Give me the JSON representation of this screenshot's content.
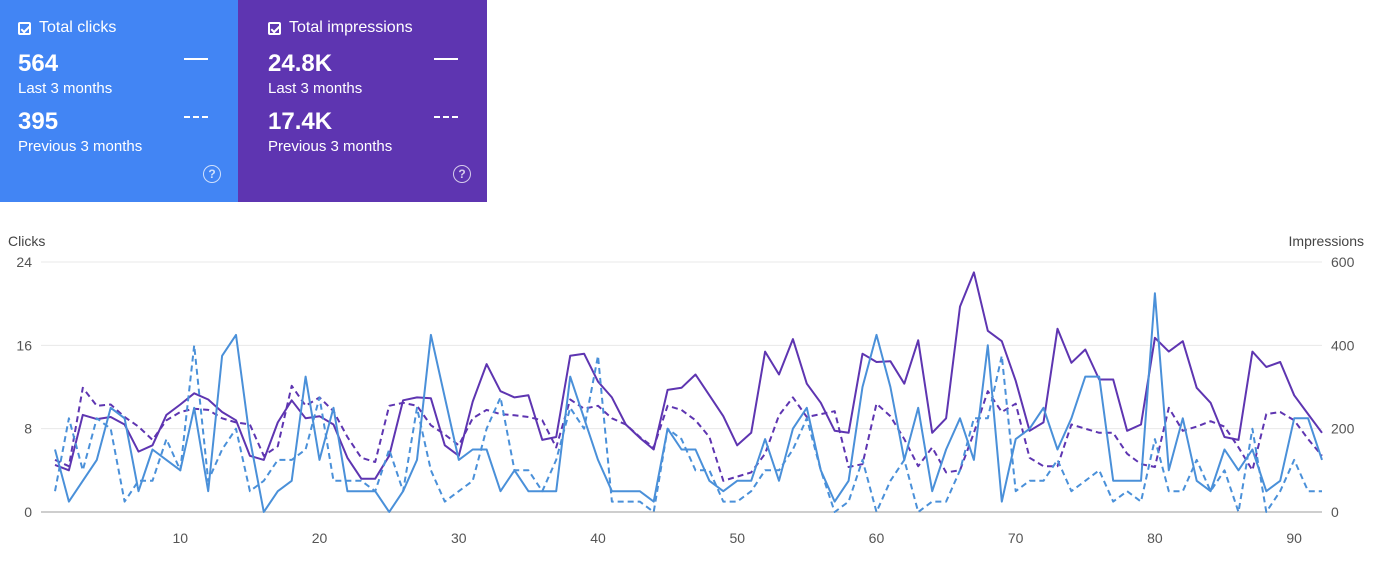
{
  "cards": {
    "clicks": {
      "title": "Total clicks",
      "current_value": "564",
      "current_label": "Last 3 months",
      "previous_value": "395",
      "previous_label": "Previous 3 months",
      "color": "#4285f4",
      "help_glyph": "?"
    },
    "impressions": {
      "title": "Total impressions",
      "current_value": "24.8K",
      "current_label": "Last 3 months",
      "previous_value": "17.4K",
      "previous_label": "Previous 3 months",
      "color": "#5e35b1",
      "help_glyph": "?"
    }
  },
  "chart_data": {
    "type": "line",
    "left_axis_label": "Clicks",
    "right_axis_label": "Impressions",
    "y_left_ticks": [
      0,
      8,
      16,
      24
    ],
    "y_right_ticks": [
      0,
      200,
      400,
      600
    ],
    "ylim_left": [
      0,
      24
    ],
    "ylim_right": [
      0,
      600
    ],
    "x_ticks": [
      10,
      20,
      30,
      40,
      50,
      60,
      70,
      80,
      90
    ],
    "xlim": [
      1,
      92
    ],
    "grid": true,
    "series": [
      {
        "axis": "right",
        "style": "solid",
        "color": "#5e35b1",
        "values": [
          113,
          100,
          233,
          223,
          228,
          210,
          145,
          160,
          233,
          258,
          285,
          270,
          240,
          220,
          135,
          125,
          215,
          268,
          225,
          230,
          210,
          130,
          80,
          80,
          135,
          268,
          275,
          273,
          160,
          135,
          265,
          355,
          290,
          275,
          280,
          173,
          180,
          375,
          380,
          313,
          275,
          210,
          178,
          150,
          293,
          298,
          330,
          280,
          230,
          160,
          190,
          385,
          330,
          415,
          308,
          262,
          195,
          190,
          380,
          360,
          362,
          308,
          412,
          190,
          225,
          493,
          575,
          435,
          410,
          315,
          195,
          215,
          440,
          358,
          390,
          318,
          318,
          195,
          210,
          418,
          385,
          410,
          298,
          262,
          180,
          173,
          385,
          348,
          360,
          280,
          235,
          190
        ]
      },
      {
        "axis": "right",
        "style": "dashed",
        "color": "#5e35b1",
        "values": [
          125,
          110,
          298,
          255,
          258,
          228,
          205,
          173,
          220,
          240,
          248,
          245,
          225,
          215,
          210,
          135,
          158,
          303,
          255,
          275,
          242,
          180,
          130,
          120,
          255,
          262,
          255,
          208,
          186,
          160,
          225,
          245,
          235,
          232,
          228,
          220,
          155,
          270,
          248,
          255,
          225,
          210,
          180,
          155,
          255,
          245,
          220,
          180,
          75,
          85,
          95,
          140,
          232,
          275,
          228,
          235,
          242,
          108,
          115,
          260,
          230,
          175,
          110,
          155,
          95,
          100,
          190,
          290,
          240,
          260,
          130,
          110,
          110,
          210,
          200,
          190,
          190,
          140,
          115,
          108,
          250,
          195,
          205,
          218,
          205,
          155,
          100,
          235,
          240,
          220,
          175,
          135
        ]
      },
      {
        "axis": "left",
        "style": "solid",
        "color": "#4a90d9",
        "values": [
          6,
          1,
          3,
          5,
          10,
          9,
          2,
          6,
          5,
          4,
          10,
          2,
          15,
          17,
          7,
          0,
          2,
          3,
          13,
          5,
          10,
          2,
          2,
          2,
          0,
          2,
          5,
          17,
          11,
          5,
          6,
          6,
          2,
          4,
          2,
          2,
          2,
          13,
          9,
          5,
          2,
          2,
          2,
          1,
          8,
          6,
          6,
          3,
          2,
          3,
          3,
          7,
          3,
          8,
          10,
          4,
          1,
          3,
          12,
          17,
          12,
          5,
          10,
          2,
          6,
          9,
          5,
          16,
          1,
          7,
          8,
          10,
          6,
          9,
          13,
          13,
          3,
          3,
          3,
          21,
          4,
          9,
          3,
          2,
          6,
          4,
          6,
          2,
          3,
          9,
          9,
          5
        ]
      },
      {
        "axis": "left",
        "style": "dashed",
        "color": "#4a90d9",
        "values": [
          2,
          9,
          4,
          9,
          8,
          1,
          3,
          3,
          7,
          4,
          16,
          3,
          6,
          8,
          2,
          3,
          5,
          5,
          6,
          11,
          3,
          3,
          3,
          2,
          6,
          2,
          10,
          4,
          1,
          2,
          3,
          8,
          11,
          4,
          4,
          2,
          5,
          10,
          8,
          15,
          1,
          1,
          1,
          0,
          8,
          7,
          4,
          4,
          1,
          1,
          2,
          4,
          4,
          6,
          9,
          4,
          0,
          1,
          5,
          0,
          3,
          5,
          0,
          1,
          1,
          4,
          9,
          9,
          15,
          2,
          3,
          3,
          5,
          2,
          3,
          4,
          1,
          2,
          1,
          7,
          2,
          2,
          5,
          2,
          4,
          0,
          8,
          0,
          2,
          5,
          2,
          2
        ]
      }
    ]
  }
}
